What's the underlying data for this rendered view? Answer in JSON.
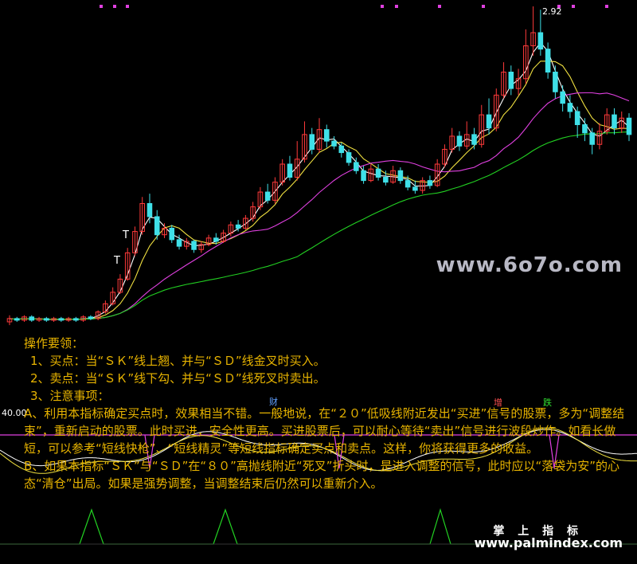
{
  "chart_data": {
    "type": "candlestick",
    "peak_label": "2.92",
    "indicator_axis_label": "40.00",
    "markers": {
      "sell_signal": "T"
    },
    "indicator_tags": [
      "财",
      "增",
      "跌"
    ],
    "candles": [
      {
        "o": 1.0,
        "c": 1.02,
        "h": 1.04,
        "l": 0.98
      },
      {
        "o": 1.02,
        "c": 1.01,
        "h": 1.03,
        "l": 1.0
      },
      {
        "o": 1.01,
        "c": 1.03,
        "h": 1.04,
        "l": 1.0
      },
      {
        "o": 1.03,
        "c": 1.01,
        "h": 1.04,
        "l": 1.0
      },
      {
        "o": 1.01,
        "c": 1.02,
        "h": 1.03,
        "l": 1.0
      },
      {
        "o": 1.02,
        "c": 1.01,
        "h": 1.03,
        "l": 1.0
      },
      {
        "o": 1.01,
        "c": 1.02,
        "h": 1.03,
        "l": 1.0
      },
      {
        "o": 1.02,
        "c": 1.01,
        "h": 1.03,
        "l": 1.0
      },
      {
        "o": 1.01,
        "c": 1.02,
        "h": 1.03,
        "l": 1.0
      },
      {
        "o": 1.02,
        "c": 1.01,
        "h": 1.03,
        "l": 1.0
      },
      {
        "o": 1.01,
        "c": 1.03,
        "h": 1.04,
        "l": 1.0
      },
      {
        "o": 1.03,
        "c": 1.02,
        "h": 1.04,
        "l": 1.01
      },
      {
        "o": 1.02,
        "c": 1.06,
        "h": 1.07,
        "l": 1.01
      },
      {
        "o": 1.06,
        "c": 1.11,
        "h": 1.13,
        "l": 1.05
      },
      {
        "o": 1.11,
        "c": 1.18,
        "h": 1.21,
        "l": 1.1
      },
      {
        "o": 1.18,
        "c": 1.26,
        "h": 1.29,
        "l": 1.17
      },
      {
        "o": 1.26,
        "c": 1.42,
        "h": 1.45,
        "l": 1.25
      },
      {
        "o": 1.42,
        "c": 1.55,
        "h": 1.58,
        "l": 1.4
      },
      {
        "o": 1.55,
        "c": 1.72,
        "h": 1.76,
        "l": 1.53
      },
      {
        "o": 1.72,
        "c": 1.64,
        "h": 1.78,
        "l": 1.6
      },
      {
        "o": 1.64,
        "c": 1.53,
        "h": 1.68,
        "l": 1.5
      },
      {
        "o": 1.53,
        "c": 1.57,
        "h": 1.6,
        "l": 1.51
      },
      {
        "o": 1.57,
        "c": 1.5,
        "h": 1.59,
        "l": 1.48
      },
      {
        "o": 1.5,
        "c": 1.46,
        "h": 1.53,
        "l": 1.44
      },
      {
        "o": 1.46,
        "c": 1.49,
        "h": 1.51,
        "l": 1.44
      },
      {
        "o": 1.49,
        "c": 1.44,
        "h": 1.5,
        "l": 1.42
      },
      {
        "o": 1.44,
        "c": 1.47,
        "h": 1.49,
        "l": 1.42
      },
      {
        "o": 1.47,
        "c": 1.51,
        "h": 1.53,
        "l": 1.46
      },
      {
        "o": 1.51,
        "c": 1.49,
        "h": 1.54,
        "l": 1.47
      },
      {
        "o": 1.49,
        "c": 1.54,
        "h": 1.56,
        "l": 1.48
      },
      {
        "o": 1.54,
        "c": 1.59,
        "h": 1.61,
        "l": 1.52
      },
      {
        "o": 1.59,
        "c": 1.57,
        "h": 1.62,
        "l": 1.55
      },
      {
        "o": 1.57,
        "c": 1.63,
        "h": 1.65,
        "l": 1.56
      },
      {
        "o": 1.63,
        "c": 1.7,
        "h": 1.73,
        "l": 1.61
      },
      {
        "o": 1.7,
        "c": 1.79,
        "h": 1.82,
        "l": 1.68
      },
      {
        "o": 1.79,
        "c": 1.74,
        "h": 1.84,
        "l": 1.72
      },
      {
        "o": 1.74,
        "c": 1.85,
        "h": 1.88,
        "l": 1.72
      },
      {
        "o": 1.85,
        "c": 1.96,
        "h": 1.99,
        "l": 1.83
      },
      {
        "o": 1.96,
        "c": 1.88,
        "h": 2.01,
        "l": 1.86
      },
      {
        "o": 1.88,
        "c": 1.99,
        "h": 2.1,
        "l": 1.86
      },
      {
        "o": 1.99,
        "c": 2.14,
        "h": 2.22,
        "l": 1.97
      },
      {
        "o": 2.14,
        "c": 2.05,
        "h": 2.18,
        "l": 2.02
      },
      {
        "o": 2.05,
        "c": 2.17,
        "h": 2.24,
        "l": 2.03
      },
      {
        "o": 2.17,
        "c": 2.1,
        "h": 2.2,
        "l": 2.06
      },
      {
        "o": 2.1,
        "c": 2.07,
        "h": 2.13,
        "l": 2.05
      },
      {
        "o": 2.07,
        "c": 2.03,
        "h": 2.09,
        "l": 2.0
      },
      {
        "o": 2.03,
        "c": 1.97,
        "h": 2.05,
        "l": 1.95
      },
      {
        "o": 1.97,
        "c": 1.92,
        "h": 2.0,
        "l": 1.9
      },
      {
        "o": 1.92,
        "c": 1.86,
        "h": 1.95,
        "l": 1.84
      },
      {
        "o": 1.86,
        "c": 1.93,
        "h": 1.96,
        "l": 1.85
      },
      {
        "o": 1.93,
        "c": 1.88,
        "h": 1.96,
        "l": 1.86
      },
      {
        "o": 1.88,
        "c": 1.85,
        "h": 1.92,
        "l": 1.83
      },
      {
        "o": 1.85,
        "c": 1.92,
        "h": 1.95,
        "l": 1.84
      },
      {
        "o": 1.92,
        "c": 1.86,
        "h": 1.94,
        "l": 1.84
      },
      {
        "o": 1.86,
        "c": 1.82,
        "h": 1.89,
        "l": 1.8
      },
      {
        "o": 1.82,
        "c": 1.8,
        "h": 1.86,
        "l": 1.78
      },
      {
        "o": 1.8,
        "c": 1.86,
        "h": 1.88,
        "l": 1.78
      },
      {
        "o": 1.86,
        "c": 1.83,
        "h": 1.89,
        "l": 1.81
      },
      {
        "o": 1.83,
        "c": 1.96,
        "h": 1.99,
        "l": 1.82
      },
      {
        "o": 1.96,
        "c": 2.05,
        "h": 2.08,
        "l": 1.94
      },
      {
        "o": 2.05,
        "c": 2.13,
        "h": 2.18,
        "l": 2.03
      },
      {
        "o": 2.13,
        "c": 2.07,
        "h": 2.16,
        "l": 2.04
      },
      {
        "o": 2.07,
        "c": 2.14,
        "h": 2.22,
        "l": 2.05
      },
      {
        "o": 2.14,
        "c": 2.08,
        "h": 2.18,
        "l": 2.05
      },
      {
        "o": 2.08,
        "c": 2.26,
        "h": 2.32,
        "l": 2.06
      },
      {
        "o": 2.26,
        "c": 2.18,
        "h": 2.36,
        "l": 2.14
      },
      {
        "o": 2.18,
        "c": 2.38,
        "h": 2.42,
        "l": 2.16
      },
      {
        "o": 2.38,
        "c": 2.52,
        "h": 2.58,
        "l": 2.36
      },
      {
        "o": 2.52,
        "c": 2.42,
        "h": 2.56,
        "l": 2.38
      },
      {
        "o": 2.42,
        "c": 2.48,
        "h": 2.54,
        "l": 2.38
      },
      {
        "o": 2.48,
        "c": 2.68,
        "h": 2.78,
        "l": 2.45
      },
      {
        "o": 2.68,
        "c": 2.76,
        "h": 2.92,
        "l": 2.62
      },
      {
        "o": 2.76,
        "c": 2.66,
        "h": 2.9,
        "l": 2.62
      },
      {
        "o": 2.66,
        "c": 2.52,
        "h": 2.7,
        "l": 2.48
      },
      {
        "o": 2.52,
        "c": 2.4,
        "h": 2.56,
        "l": 2.36
      },
      {
        "o": 2.4,
        "c": 2.33,
        "h": 2.44,
        "l": 2.28
      },
      {
        "o": 2.33,
        "c": 2.28,
        "h": 2.38,
        "l": 2.24
      },
      {
        "o": 2.28,
        "c": 2.2,
        "h": 2.31,
        "l": 2.12
      },
      {
        "o": 2.2,
        "c": 2.15,
        "h": 2.24,
        "l": 2.1
      },
      {
        "o": 2.15,
        "c": 2.08,
        "h": 2.18,
        "l": 2.02
      },
      {
        "o": 2.08,
        "c": 2.16,
        "h": 2.21,
        "l": 2.05
      },
      {
        "o": 2.16,
        "c": 2.26,
        "h": 2.3,
        "l": 2.14
      },
      {
        "o": 2.26,
        "c": 2.18,
        "h": 2.3,
        "l": 2.14
      },
      {
        "o": 2.18,
        "c": 2.24,
        "h": 2.28,
        "l": 2.15
      },
      {
        "o": 2.24,
        "c": 2.14,
        "h": 2.27,
        "l": 2.1
      }
    ],
    "series": [
      {
        "name": "SK",
        "color": "#ffffff"
      },
      {
        "name": "SD",
        "color": "#f0e040"
      },
      {
        "color": "#e040e0"
      },
      {
        "color": "#22d022"
      }
    ],
    "indicator_series": [
      {
        "color": "#ffffff"
      },
      {
        "color": "#f0e040"
      },
      {
        "color": "#e040e0"
      },
      {
        "color": "#22d022"
      }
    ]
  },
  "notes": {
    "title": "操作要领：",
    "lines": [
      "1、买点：当“ＳＫ”线上翘、并与“ＳＤ”线金叉时买入。",
      "2、卖点：当“ＳＫ”线下勾、并与“ＳＤ”线死叉时卖出。",
      "3、注意事项：",
      "A、利用本指标确定买点时，效果相当不错。一般地说，在“２０”低吸线附近发出“买进”信号的股票，多为“调整结束”，重新启动的股票。此时买进，安全性更高。买进股票后，可以耐心等待“卖出”信号进行波段炒作。如看长做短，可以参考“短线快枪”、“短线精灵”等短线指标确定买点和卖点。这样，你将获得更多的收益。",
      "B、如果本指标“ＳＫ”与“ＳＤ”在“８０”高抛线附近“死叉”折头时，是进入调整的信号，此时应以“落袋为安”的心态“清仓”出局。如果是强势调整，当调整结束后仍然可以重新介入。"
    ]
  },
  "watermarks": {
    "site1": "www.6o7o.com",
    "brand_cn": "掌 上 指 标",
    "site2": "www.palmindex.com"
  }
}
